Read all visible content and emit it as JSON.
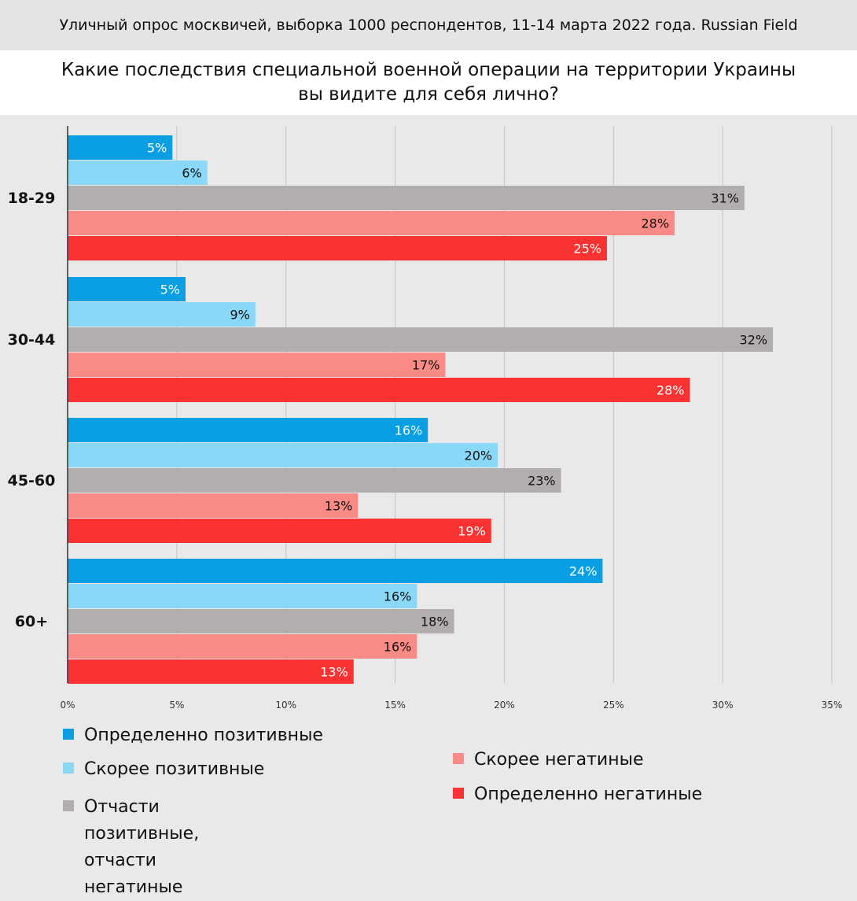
{
  "header": {
    "subtitle": "Уличный опрос москвичей, выборка 1000 респондентов, 11-14 марта 2022 года. Russian Field",
    "title": "Какие последствия специальной военной операции на территории Украины\nвы видите для себя лично?"
  },
  "chart_data": {
    "type": "bar",
    "orientation": "horizontal",
    "categories": [
      "18-29",
      "30-44",
      "45-60",
      "60+"
    ],
    "xlim": [
      0,
      35
    ],
    "xticks": [
      "0%",
      "5%",
      "10%",
      "15%",
      "20%",
      "25%",
      "30%",
      "35%"
    ],
    "grid": true,
    "series": [
      {
        "name": "Определенно позитивные",
        "color": "#0a9ee3",
        "label_color": "#ffffff",
        "values": [
          4.8,
          5.4,
          16.5,
          24.5
        ],
        "labels": [
          "5%",
          "5%",
          "16%",
          "24%"
        ]
      },
      {
        "name": "Скорее позитивные",
        "color": "#8ad8f8",
        "label_color": "#111111",
        "values": [
          6.4,
          8.6,
          19.7,
          16.0
        ],
        "labels": [
          "6%",
          "9%",
          "20%",
          "16%"
        ]
      },
      {
        "name": "Отчасти позитивные,\nотчасти негатиные",
        "color": "#b2aeae",
        "label_color": "#111111",
        "values": [
          31.0,
          32.3,
          22.6,
          17.7
        ],
        "labels": [
          "31%",
          "32%",
          "23%",
          "18%"
        ]
      },
      {
        "name": "Скорее негатиные",
        "color": "#f98a86",
        "label_color": "#111111",
        "values": [
          27.8,
          17.3,
          13.3,
          16.0
        ],
        "labels": [
          "28%",
          "17%",
          "13%",
          "16%"
        ]
      },
      {
        "name": "Определенно негатиные",
        "color": "#fa3232",
        "label_color": "#ffffff",
        "values": [
          24.7,
          28.5,
          19.4,
          13.1
        ],
        "labels": [
          "25%",
          "28%",
          "19%",
          "13%"
        ]
      }
    ],
    "legend_position": "bottom"
  }
}
